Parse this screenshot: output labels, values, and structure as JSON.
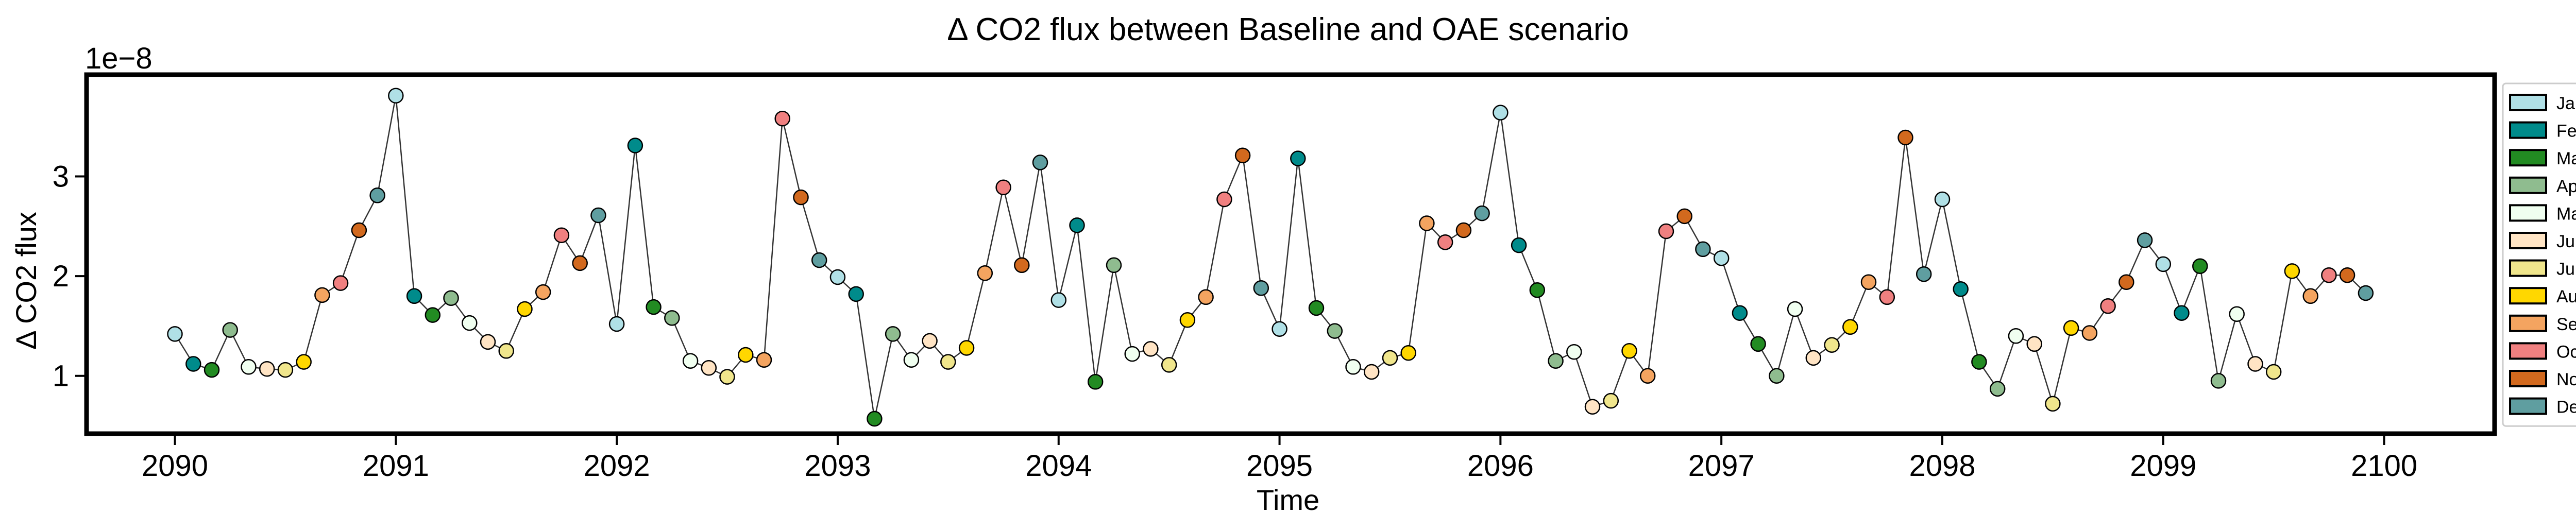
{
  "chart_data": {
    "type": "line",
    "title": "Δ CO2 flux between Baseline and OAE scenario",
    "xlabel": "Time",
    "ylabel": "Δ CO2 flux",
    "y_scale_note": "1e−8",
    "xlim": [
      2089.6,
      2100.5
    ],
    "ylim": [
      0.42,
      4.02
    ],
    "xticks": [
      2090,
      2091,
      2092,
      2093,
      2094,
      2095,
      2096,
      2097,
      2098,
      2099,
      2100
    ],
    "yticks": [
      1,
      2,
      3
    ],
    "legend_position": "right, outside plot",
    "grid": false,
    "series": [
      {
        "start_year": 2090,
        "month_colors": [
          "#b0e0e6",
          "#008b8b",
          "#228b22",
          "#8fbc8f",
          "#f0fff0",
          "#ffe4c4",
          "#f0e68c",
          "#ffd700",
          "#f4a460",
          "#f08080",
          "#d2691e",
          "#5f9ea0"
        ],
        "values": [
          1.42,
          1.12,
          1.06,
          1.46,
          1.09,
          1.07,
          1.06,
          1.14,
          1.81,
          1.93,
          2.46,
          2.81,
          3.81,
          1.8,
          1.61,
          1.78,
          1.53,
          1.34,
          1.25,
          1.67,
          1.84,
          2.41,
          2.13,
          2.61,
          1.52,
          3.31,
          1.69,
          1.58,
          1.15,
          1.08,
          0.99,
          1.21,
          1.16,
          3.58,
          2.79,
          2.16,
          1.99,
          1.82,
          0.57,
          1.42,
          1.16,
          1.35,
          1.14,
          1.28,
          2.03,
          2.89,
          2.11,
          3.14,
          1.76,
          2.51,
          0.94,
          2.11,
          1.22,
          1.27,
          1.11,
          1.56,
          1.79,
          2.77,
          3.21,
          1.88,
          1.47,
          3.18,
          1.68,
          1.45,
          1.09,
          1.04,
          1.18,
          1.23,
          2.53,
          2.34,
          2.46,
          2.63,
          3.64,
          2.31,
          1.86,
          1.15,
          1.24,
          0.69,
          0.75,
          1.25,
          1.0,
          2.45,
          2.6,
          2.27,
          2.18,
          1.63,
          1.32,
          1.0,
          1.67,
          1.18,
          1.31,
          1.49,
          1.94,
          1.79,
          3.39,
          2.02,
          2.77,
          1.87,
          1.14,
          0.87,
          1.4,
          1.32,
          0.72,
          1.48,
          1.43,
          1.7,
          1.94,
          2.36,
          2.12,
          1.63,
          2.1,
          0.95,
          1.62,
          1.12,
          1.04,
          2.05,
          1.8,
          2.01,
          2.01,
          1.83
        ]
      }
    ],
    "legend": [
      {
        "label": "Jan",
        "color": "#b0e0e6"
      },
      {
        "label": "Feb",
        "color": "#008b8b"
      },
      {
        "label": "Mar",
        "color": "#228b22"
      },
      {
        "label": "Apr",
        "color": "#8fbc8f"
      },
      {
        "label": "May",
        "color": "#f0fff0"
      },
      {
        "label": "June",
        "color": "#ffe4c4"
      },
      {
        "label": "July",
        "color": "#f0e68c"
      },
      {
        "label": "Aug",
        "color": "#ffd700"
      },
      {
        "label": "Sept",
        "color": "#f4a460"
      },
      {
        "label": "Oct",
        "color": "#f08080"
      },
      {
        "label": "Nov",
        "color": "#d2691e"
      },
      {
        "label": "Dec",
        "color": "#5f9ea0"
      }
    ]
  }
}
